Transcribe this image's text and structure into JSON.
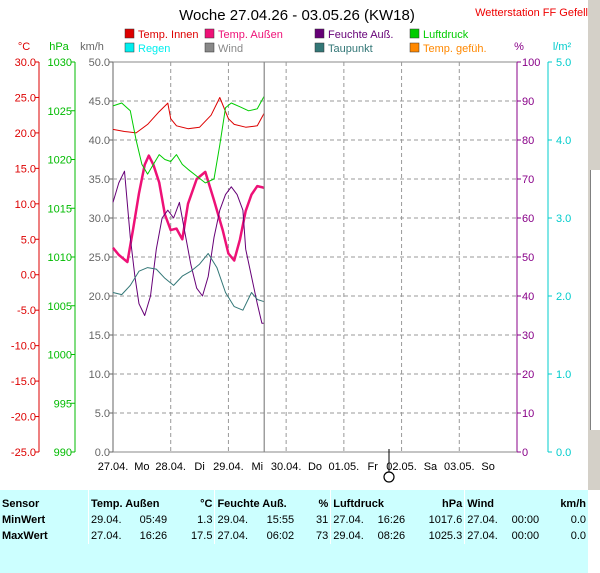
{
  "window": {
    "title": "Woche 27.04.26 - 03.05.26 (KW18)",
    "station": "Wetterstation FF Gefell"
  },
  "legend": [
    {
      "label": "Temp. Innen",
      "color": "#dd0000"
    },
    {
      "label": "Temp. Außen",
      "color": "#ee1177"
    },
    {
      "label": "Feuchte Auß.",
      "color": "#660077"
    },
    {
      "label": "Luftdruck",
      "color": "#00cc00"
    },
    {
      "label": "Regen",
      "color": "#00eeee"
    },
    {
      "label": "Wind",
      "color": "#888888"
    },
    {
      "label": "Taupunkt",
      "color": "#337777"
    },
    {
      "label": "Temp. gefüh.",
      "color": "#ff8800"
    }
  ],
  "chart_data": {
    "type": "line",
    "x_ticks": [
      "27.04.",
      "Mo",
      "28.04.",
      "Di",
      "29.04.",
      "Mi",
      "30.04.",
      "Do",
      "01.05.",
      "Fr",
      "02.05.",
      "Sa",
      "03.05.",
      "So"
    ],
    "axes": {
      "temp": {
        "unit": "°C",
        "min": -25,
        "max": 30,
        "step": 5,
        "color": "#dd0000",
        "ticks": [
          "30.0",
          "25.0",
          "20.0",
          "15.0",
          "10.0",
          "5.0",
          "0.0",
          "-5.0",
          "-10.0",
          "-15.0",
          "-20.0",
          "-25.0"
        ]
      },
      "pressure": {
        "unit": "hPa",
        "min": 990,
        "max": 1030,
        "step": 5,
        "color": "#00bb00",
        "ticks": [
          "1030",
          "1025",
          "1020",
          "1015",
          "1010",
          "1005",
          "1000",
          "995",
          "990"
        ]
      },
      "wind": {
        "unit": "km/h",
        "min": 0,
        "max": 50,
        "step": 5,
        "color": "#666666",
        "ticks": [
          "50.0",
          "45.0",
          "40.0",
          "35.0",
          "30.0",
          "25.0",
          "20.0",
          "15.0",
          "10.0",
          "5.0",
          "0.0"
        ]
      },
      "humidity": {
        "unit": "%",
        "min": 0,
        "max": 100,
        "step": 10,
        "color": "#880088",
        "ticks": [
          "100",
          "90",
          "80",
          "70",
          "60",
          "50",
          "40",
          "30",
          "20",
          "10",
          "0"
        ]
      },
      "rain": {
        "unit": "l/m²",
        "min": 0,
        "max": 5,
        "step": 1,
        "color": "#00cccc",
        "ticks": [
          "5.0",
          "4.0",
          "3.0",
          "2.0",
          "1.0",
          "0.0"
        ]
      }
    },
    "grid": true,
    "series": [
      {
        "name": "Temp. Innen",
        "axis": "temp",
        "color": "#dd0000",
        "width": 1,
        "x": [
          0,
          0.2,
          0.4,
          0.6,
          0.8,
          0.95,
          1.0,
          1.1,
          1.3,
          1.5,
          1.7,
          1.85,
          2.0,
          2.1,
          2.3,
          2.5,
          2.62
        ],
        "y": [
          20.5,
          20.2,
          20.0,
          21.2,
          23.0,
          24.2,
          22.0,
          21.0,
          20.6,
          20.8,
          22.5,
          25.0,
          22.0,
          21.2,
          20.8,
          21.0,
          22.8
        ]
      },
      {
        "name": "Temp. Außen",
        "axis": "temp",
        "color": "#ee1177",
        "width": 2.5,
        "x": [
          0,
          0.1,
          0.25,
          0.35,
          0.45,
          0.55,
          0.62,
          0.7,
          0.8,
          0.9,
          1.0,
          1.1,
          1.2,
          1.3,
          1.45,
          1.6,
          1.75,
          1.9,
          2.0,
          2.1,
          2.2,
          2.3,
          2.4,
          2.5,
          2.6,
          2.62
        ],
        "y": [
          3.8,
          2.8,
          1.8,
          6.5,
          11.5,
          15.5,
          16.8,
          15.5,
          13.0,
          8.5,
          6.3,
          6.5,
          5.0,
          10.0,
          13.5,
          14.5,
          10.5,
          6.3,
          3.0,
          2.0,
          5.0,
          9.0,
          11.3,
          12.5,
          12.3,
          12.2
        ]
      },
      {
        "name": "Feuchte Auß.",
        "axis": "humidity",
        "color": "#660077",
        "width": 1,
        "x": [
          0,
          0.1,
          0.2,
          0.3,
          0.38,
          0.45,
          0.55,
          0.65,
          0.75,
          0.85,
          0.95,
          1.05,
          1.15,
          1.25,
          1.35,
          1.45,
          1.55,
          1.65,
          1.75,
          1.85,
          1.95,
          2.05,
          2.15,
          2.25,
          2.3,
          2.4,
          2.5,
          2.58,
          2.62
        ],
        "y": [
          64,
          69,
          72,
          55,
          45,
          38,
          35,
          40,
          52,
          60,
          62,
          60,
          64,
          56,
          48,
          42,
          40,
          45,
          55,
          62,
          66,
          68,
          66,
          62,
          52,
          45,
          38,
          33,
          33
        ]
      },
      {
        "name": "Luftdruck",
        "axis": "pressure",
        "color": "#00cc00",
        "width": 1,
        "x": [
          0,
          0.15,
          0.3,
          0.4,
          0.5,
          0.6,
          0.7,
          0.8,
          0.9,
          1.0,
          1.1,
          1.2,
          1.3,
          1.45,
          1.6,
          1.75,
          1.85,
          1.95,
          2.05,
          2.2,
          2.35,
          2.5,
          2.62
        ],
        "y": [
          1025.5,
          1025.8,
          1025.0,
          1022.0,
          1019.5,
          1018.5,
          1019.5,
          1020.5,
          1020.0,
          1019.8,
          1020.5,
          1019.5,
          1019.0,
          1018.3,
          1017.6,
          1018.0,
          1021.5,
          1025.3,
          1025.8,
          1025.4,
          1025.0,
          1025.2,
          1026.5
        ]
      },
      {
        "name": "Taupunkt",
        "axis": "temp",
        "color": "#337777",
        "width": 1,
        "x": [
          0,
          0.15,
          0.3,
          0.45,
          0.6,
          0.75,
          0.9,
          1.05,
          1.2,
          1.35,
          1.5,
          1.65,
          1.8,
          1.95,
          2.1,
          2.25,
          2.4,
          2.5,
          2.62
        ],
        "y": [
          -2.5,
          -2.8,
          -1.5,
          0.5,
          1.0,
          0.8,
          -0.5,
          -1.5,
          -0.2,
          0.5,
          1.5,
          3.0,
          1.0,
          -2.5,
          -4.5,
          -5.0,
          -2.5,
          -3.5,
          -3.8
        ]
      }
    ],
    "now_marker_x": 2.62
  },
  "stats": {
    "headers": {
      "sensor": "Sensor",
      "temp": "Temp. Außen",
      "temp_unit": "°C",
      "hum": "Feuchte Auß.",
      "hum_unit": "%",
      "press": "Luftdruck",
      "press_unit": "hPa",
      "wind": "Wind",
      "wind_unit": "km/h"
    },
    "rows": [
      {
        "label": "MinWert",
        "temp_date": "29.04.",
        "temp_time": "05:49",
        "temp_val": "1.3",
        "hum_date": "29.04.",
        "hum_time": "15:55",
        "hum_val": "31",
        "press_date": "27.04.",
        "press_time": "16:26",
        "press_val": "1017.6",
        "wind_date": "27.04.",
        "wind_time": "00:00",
        "wind_val": "0.0"
      },
      {
        "label": "MaxWert",
        "temp_date": "27.04.",
        "temp_time": "16:26",
        "temp_val": "17.5",
        "hum_date": "27.04.",
        "hum_time": "06:02",
        "hum_val": "73",
        "press_date": "29.04.",
        "press_time": "08:26",
        "press_val": "1025.3",
        "wind_date": "27.04.",
        "wind_time": "00:00",
        "wind_val": "0.0"
      }
    ]
  }
}
